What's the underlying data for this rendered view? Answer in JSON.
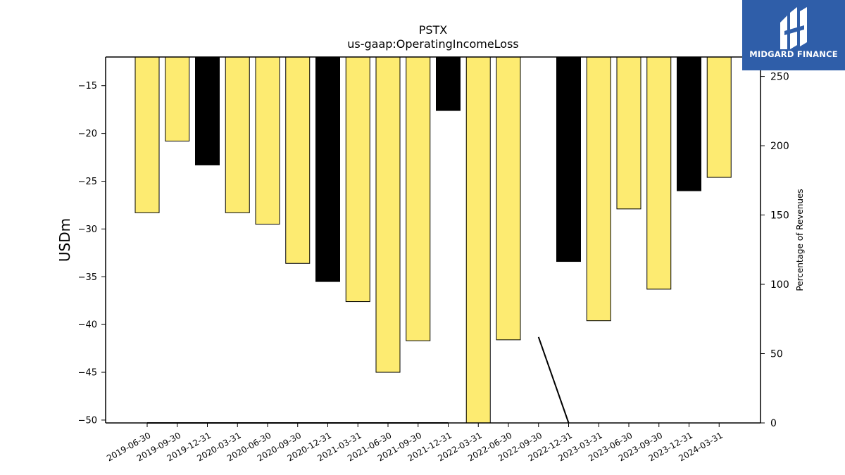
{
  "chart_data": {
    "type": "bar",
    "title": "PSTX",
    "subtitle": "us-gaap:OperatingIncomeLoss",
    "ylabel": "USDm",
    "y2label": "Percentage of Revenues",
    "categories": [
      "2019-06-30",
      "2019-09-30",
      "2019-12-31",
      "2020-03-31",
      "2020-06-30",
      "2020-09-30",
      "2020-12-31",
      "2021-03-31",
      "2021-06-30",
      "2021-09-30",
      "2021-12-31",
      "2022-03-31",
      "2022-06-30",
      "2022-09-30",
      "2022-12-31",
      "2023-03-31",
      "2023-06-30",
      "2023-09-30",
      "2023-12-31",
      "2024-03-31"
    ],
    "values": [
      -28.3,
      -20.8,
      -23.3,
      -28.3,
      -29.5,
      -33.6,
      -35.5,
      -37.6,
      -45.0,
      -41.7,
      -17.6,
      -51.0,
      -41.6,
      null,
      -33.4,
      -39.6,
      -27.9,
      -36.3,
      -26.0,
      -24.6
    ],
    "bar_colors": [
      "#fdeb71",
      "#fdeb71",
      "#000000",
      "#fdeb71",
      "#fdeb71",
      "#fdeb71",
      "#000000",
      "#fdeb71",
      "#fdeb71",
      "#fdeb71",
      "#000000",
      "#fdeb71",
      "#fdeb71",
      "#fdeb71",
      "#000000",
      "#fdeb71",
      "#fdeb71",
      "#fdeb71",
      "#000000",
      "#fdeb71"
    ],
    "pct_series": [
      0,
      0,
      0,
      0,
      0,
      0,
      0,
      0,
      0,
      0,
      0,
      null,
      null,
      62,
      0,
      null,
      null,
      null,
      null,
      null
    ],
    "ylim": [
      -50.3,
      -12
    ],
    "yticks": [
      -15,
      -20,
      -25,
      -30,
      -35,
      -40,
      -45,
      -50
    ],
    "y2lim": [
      0,
      264
    ],
    "y2ticks": [
      0,
      50,
      100,
      150,
      200,
      250
    ],
    "grid": false
  },
  "logo": {
    "text": "MIDGARD FINANCE"
  }
}
